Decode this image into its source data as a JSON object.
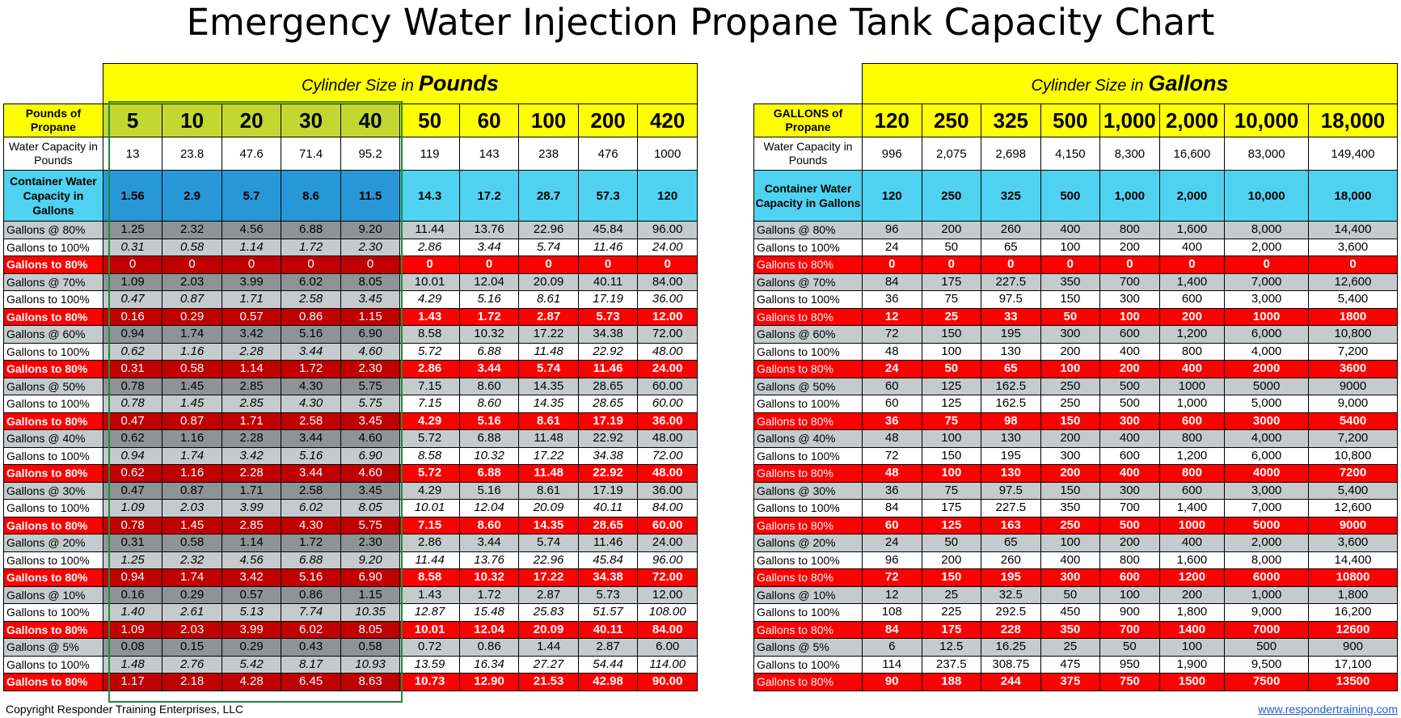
{
  "title": "Emergency Water Injection Propane Tank Capacity Chart",
  "footer": {
    "copyright": "Copyright Responder Training Enterprises, LLC",
    "website": "www.respondertraining.com"
  },
  "colors": {
    "yellow": "#ffff00",
    "yellow_green": "#c2d831",
    "cyan": "#4fd2f0",
    "blue": "#2797d7",
    "gray": "#c5cbcd",
    "dark_gray": "#8e9496",
    "red": "#ff0000",
    "dark_red": "#c00000",
    "green_border": "#1f8a3a",
    "link": "#1f5fd0"
  },
  "tables": [
    {
      "id": "pounds",
      "banner_prefix": "Cylinder Size in",
      "banner_unit": "Pounds",
      "header_label": "Pounds of Propane",
      "highlight_columns": 5,
      "columns": [
        "5",
        "10",
        "20",
        "30",
        "40",
        "50",
        "60",
        "100",
        "200",
        "420"
      ],
      "water_capacity_label": "Water Capacity in Pounds",
      "water_capacity": [
        "13",
        "23.8",
        "47.6",
        "71.4",
        "95.2",
        "119",
        "143",
        "238",
        "476",
        "1000"
      ],
      "container_label": "Container Water Capacity in Gallons",
      "container": [
        "1.56",
        "2.9",
        "5.7",
        "8.6",
        "11.5",
        "14.3",
        "17.2",
        "28.7",
        "57.3",
        "120"
      ],
      "rows": [
        {
          "type": "at",
          "label": "Gallons @ 80%",
          "values": [
            "1.25",
            "2.32",
            "4.56",
            "6.88",
            "9.20",
            "11.44",
            "13.76",
            "22.96",
            "45.84",
            "96.00"
          ]
        },
        {
          "type": "to",
          "label": "Gallons to 100%",
          "values": [
            "0.31",
            "0.58",
            "1.14",
            "1.72",
            "2.30",
            "2.86",
            "3.44",
            "5.74",
            "11.46",
            "24.00"
          ]
        },
        {
          "type": "r80",
          "label": "Gallons to 80%",
          "values": [
            "0",
            "0",
            "0",
            "0",
            "0",
            "0",
            "0",
            "0",
            "0",
            "0"
          ]
        },
        {
          "type": "at",
          "label": "Gallons @ 70%",
          "values": [
            "1.09",
            "2.03",
            "3.99",
            "6.02",
            "8.05",
            "10.01",
            "12.04",
            "20.09",
            "40.11",
            "84.00"
          ]
        },
        {
          "type": "to",
          "label": "Gallons to 100%",
          "values": [
            "0.47",
            "0.87",
            "1.71",
            "2.58",
            "3.45",
            "4.29",
            "5.16",
            "8.61",
            "17.19",
            "36.00"
          ]
        },
        {
          "type": "r80",
          "label": "Gallons to 80%",
          "values": [
            "0.16",
            "0.29",
            "0.57",
            "0.86",
            "1.15",
            "1.43",
            "1.72",
            "2.87",
            "5.73",
            "12.00"
          ]
        },
        {
          "type": "at",
          "label": "Gallons @ 60%",
          "values": [
            "0.94",
            "1.74",
            "3.42",
            "5.16",
            "6.90",
            "8.58",
            "10.32",
            "17.22",
            "34.38",
            "72.00"
          ]
        },
        {
          "type": "to",
          "label": "Gallons to 100%",
          "values": [
            "0.62",
            "1.16",
            "2.28",
            "3.44",
            "4.60",
            "5.72",
            "6.88",
            "11.48",
            "22.92",
            "48.00"
          ]
        },
        {
          "type": "r80",
          "label": "Gallons to 80%",
          "values": [
            "0.31",
            "0.58",
            "1.14",
            "1.72",
            "2.30",
            "2.86",
            "3.44",
            "5.74",
            "11.46",
            "24.00"
          ]
        },
        {
          "type": "at",
          "label": "Gallons @ 50%",
          "values": [
            "0.78",
            "1.45",
            "2.85",
            "4.30",
            "5.75",
            "7.15",
            "8.60",
            "14.35",
            "28.65",
            "60.00"
          ]
        },
        {
          "type": "to",
          "label": "Gallons to 100%",
          "values": [
            "0.78",
            "1.45",
            "2.85",
            "4.30",
            "5.75",
            "7.15",
            "8.60",
            "14.35",
            "28.65",
            "60.00"
          ]
        },
        {
          "type": "r80",
          "label": "Gallons to 80%",
          "values": [
            "0.47",
            "0.87",
            "1.71",
            "2.58",
            "3.45",
            "4.29",
            "5.16",
            "8.61",
            "17.19",
            "36.00"
          ]
        },
        {
          "type": "at",
          "label": "Gallons @ 40%",
          "values": [
            "0.62",
            "1.16",
            "2.28",
            "3.44",
            "4.60",
            "5.72",
            "6.88",
            "11.48",
            "22.92",
            "48.00"
          ]
        },
        {
          "type": "to",
          "label": "Gallons to 100%",
          "values": [
            "0.94",
            "1.74",
            "3.42",
            "5.16",
            "6.90",
            "8.58",
            "10.32",
            "17.22",
            "34.38",
            "72.00"
          ]
        },
        {
          "type": "r80",
          "label": "Gallons to 80%",
          "values": [
            "0.62",
            "1.16",
            "2.28",
            "3.44",
            "4.60",
            "5.72",
            "6.88",
            "11.48",
            "22.92",
            "48.00"
          ]
        },
        {
          "type": "at",
          "label": "Gallons @ 30%",
          "values": [
            "0.47",
            "0.87",
            "1.71",
            "2.58",
            "3.45",
            "4.29",
            "5.16",
            "8.61",
            "17.19",
            "36.00"
          ]
        },
        {
          "type": "to",
          "label": "Gallons to 100%",
          "values": [
            "1.09",
            "2.03",
            "3.99",
            "6.02",
            "8.05",
            "10.01",
            "12.04",
            "20.09",
            "40.11",
            "84.00"
          ]
        },
        {
          "type": "r80",
          "label": "Gallons to 80%",
          "values": [
            "0.78",
            "1.45",
            "2.85",
            "4.30",
            "5.75",
            "7.15",
            "8.60",
            "14.35",
            "28.65",
            "60.00"
          ]
        },
        {
          "type": "at",
          "label": "Gallons @ 20%",
          "values": [
            "0.31",
            "0.58",
            "1.14",
            "1.72",
            "2.30",
            "2.86",
            "3.44",
            "5.74",
            "11.46",
            "24.00"
          ]
        },
        {
          "type": "to",
          "label": "Gallons to 100%",
          "values": [
            "1.25",
            "2.32",
            "4.56",
            "6.88",
            "9.20",
            "11.44",
            "13.76",
            "22.96",
            "45.84",
            "96.00"
          ]
        },
        {
          "type": "r80",
          "label": "Gallons to 80%",
          "values": [
            "0.94",
            "1.74",
            "3.42",
            "5.16",
            "6.90",
            "8.58",
            "10.32",
            "17.22",
            "34.38",
            "72.00"
          ]
        },
        {
          "type": "at",
          "label": "Gallons @ 10%",
          "values": [
            "0.16",
            "0.29",
            "0.57",
            "0.86",
            "1.15",
            "1.43",
            "1.72",
            "2.87",
            "5.73",
            "12.00"
          ]
        },
        {
          "type": "to",
          "label": "Gallons to 100%",
          "values": [
            "1.40",
            "2.61",
            "5.13",
            "7.74",
            "10.35",
            "12.87",
            "15.48",
            "25.83",
            "51.57",
            "108.00"
          ]
        },
        {
          "type": "r80",
          "label": "Gallons to 80%",
          "values": [
            "1.09",
            "2.03",
            "3.99",
            "6.02",
            "8.05",
            "10.01",
            "12.04",
            "20.09",
            "40.11",
            "84.00"
          ]
        },
        {
          "type": "at",
          "label": "Gallons @ 5%",
          "values": [
            "0.08",
            "0.15",
            "0.29",
            "0.43",
            "0.58",
            "0.72",
            "0.86",
            "1.44",
            "2.87",
            "6.00"
          ]
        },
        {
          "type": "to",
          "label": "Gallons to 100%",
          "values": [
            "1.48",
            "2.76",
            "5.42",
            "8.17",
            "10.93",
            "13.59",
            "16.34",
            "27.27",
            "54.44",
            "114.00"
          ]
        },
        {
          "type": "r80",
          "label": "Gallons to 80%",
          "values": [
            "1.17",
            "2.18",
            "4.28",
            "6.45",
            "8.63",
            "10.73",
            "12.90",
            "21.53",
            "42.98",
            "90.00"
          ]
        }
      ]
    },
    {
      "id": "gallons",
      "banner_prefix": "Cylinder Size in",
      "banner_unit": "Gallons",
      "header_label": "GALLONS of Propane",
      "highlight_columns": 0,
      "columns": [
        "120",
        "250",
        "325",
        "500",
        "1,000",
        "2,000",
        "10,000",
        "18,000"
      ],
      "water_capacity_label": "Water Capacity in Pounds",
      "water_capacity": [
        "996",
        "2,075",
        "2,698",
        "4,150",
        "8,300",
        "16,600",
        "83,000",
        "149,400"
      ],
      "container_label": "Container Water Capacity in Gallons",
      "container": [
        "120",
        "250",
        "325",
        "500",
        "1,000",
        "2,000",
        "10,000",
        "18,000"
      ],
      "rows": [
        {
          "type": "at",
          "label": "Gallons @ 80%",
          "values": [
            "96",
            "200",
            "260",
            "400",
            "800",
            "1,600",
            "8,000",
            "14,400"
          ]
        },
        {
          "type": "to",
          "label": "Gallons to 100%",
          "values": [
            "24",
            "50",
            "65",
            "100",
            "200",
            "400",
            "2,000",
            "3,600"
          ]
        },
        {
          "type": "r80",
          "label": "Gallons to 80%",
          "values": [
            "0",
            "0",
            "0",
            "0",
            "0",
            "0",
            "0",
            "0"
          ]
        },
        {
          "type": "at",
          "label": "Gallons @ 70%",
          "values": [
            "84",
            "175",
            "227.5",
            "350",
            "700",
            "1,400",
            "7,000",
            "12,600"
          ]
        },
        {
          "type": "to",
          "label": "Gallons to 100%",
          "values": [
            "36",
            "75",
            "97.5",
            "150",
            "300",
            "600",
            "3,000",
            "5,400"
          ]
        },
        {
          "type": "r80",
          "label": "Gallons to 80%",
          "values": [
            "12",
            "25",
            "33",
            "50",
            "100",
            "200",
            "1000",
            "1800"
          ]
        },
        {
          "type": "at",
          "label": "Gallons @ 60%",
          "values": [
            "72",
            "150",
            "195",
            "300",
            "600",
            "1,200",
            "6,000",
            "10,800"
          ]
        },
        {
          "type": "to",
          "label": "Gallons to 100%",
          "values": [
            "48",
            "100",
            "130",
            "200",
            "400",
            "800",
            "4,000",
            "7,200"
          ]
        },
        {
          "type": "r80",
          "label": "Gallons to 80%",
          "values": [
            "24",
            "50",
            "65",
            "100",
            "200",
            "400",
            "2000",
            "3600"
          ]
        },
        {
          "type": "at",
          "label": "Gallons @ 50%",
          "values": [
            "60",
            "125",
            "162.5",
            "250",
            "500",
            "1000",
            "5000",
            "9000"
          ]
        },
        {
          "type": "to",
          "label": "Gallons to 100%",
          "values": [
            "60",
            "125",
            "162.5",
            "250",
            "500",
            "1,000",
            "5,000",
            "9,000"
          ]
        },
        {
          "type": "r80",
          "label": "Gallons to 80%",
          "values": [
            "36",
            "75",
            "98",
            "150",
            "300",
            "600",
            "3000",
            "5400"
          ]
        },
        {
          "type": "at",
          "label": "Gallons @ 40%",
          "values": [
            "48",
            "100",
            "130",
            "200",
            "400",
            "800",
            "4,000",
            "7,200"
          ]
        },
        {
          "type": "to",
          "label": "Gallons to 100%",
          "values": [
            "72",
            "150",
            "195",
            "300",
            "600",
            "1,200",
            "6,000",
            "10,800"
          ]
        },
        {
          "type": "r80",
          "label": "Gallons to 80%",
          "values": [
            "48",
            "100",
            "130",
            "200",
            "400",
            "800",
            "4000",
            "7200"
          ]
        },
        {
          "type": "at",
          "label": "Gallons @ 30%",
          "values": [
            "36",
            "75",
            "97.5",
            "150",
            "300",
            "600",
            "3,000",
            "5,400"
          ]
        },
        {
          "type": "to",
          "label": "Gallons to 100%",
          "values": [
            "84",
            "175",
            "227.5",
            "350",
            "700",
            "1,400",
            "7,000",
            "12,600"
          ]
        },
        {
          "type": "r80",
          "label": "Gallons to 80%",
          "values": [
            "60",
            "125",
            "163",
            "250",
            "500",
            "1000",
            "5000",
            "9000"
          ]
        },
        {
          "type": "at",
          "label": "Gallons @ 20%",
          "values": [
            "24",
            "50",
            "65",
            "100",
            "200",
            "400",
            "2,000",
            "3,600"
          ]
        },
        {
          "type": "to",
          "label": "Gallons to 100%",
          "values": [
            "96",
            "200",
            "260",
            "400",
            "800",
            "1,600",
            "8,000",
            "14,400"
          ]
        },
        {
          "type": "r80",
          "label": "Gallons to 80%",
          "values": [
            "72",
            "150",
            "195",
            "300",
            "600",
            "1200",
            "6000",
            "10800"
          ]
        },
        {
          "type": "at",
          "label": "Gallons @ 10%",
          "values": [
            "12",
            "25",
            "32.5",
            "50",
            "100",
            "200",
            "1,000",
            "1,800"
          ]
        },
        {
          "type": "to",
          "label": "Gallons to 100%",
          "values": [
            "108",
            "225",
            "292.5",
            "450",
            "900",
            "1,800",
            "9,000",
            "16,200"
          ]
        },
        {
          "type": "r80",
          "label": "Gallons to 80%",
          "values": [
            "84",
            "175",
            "228",
            "350",
            "700",
            "1400",
            "7000",
            "12600"
          ]
        },
        {
          "type": "at",
          "label": "Gallons @ 5%",
          "values": [
            "6",
            "12.5",
            "16.25",
            "25",
            "50",
            "100",
            "500",
            "900"
          ]
        },
        {
          "type": "to",
          "label": "Gallons to 100%",
          "values": [
            "114",
            "237.5",
            "308.75",
            "475",
            "950",
            "1,900",
            "9,500",
            "17,100"
          ]
        },
        {
          "type": "r80",
          "label": "Gallons to 80%",
          "values": [
            "90",
            "188",
            "244",
            "375",
            "750",
            "1500",
            "7500",
            "13500"
          ]
        }
      ]
    }
  ]
}
